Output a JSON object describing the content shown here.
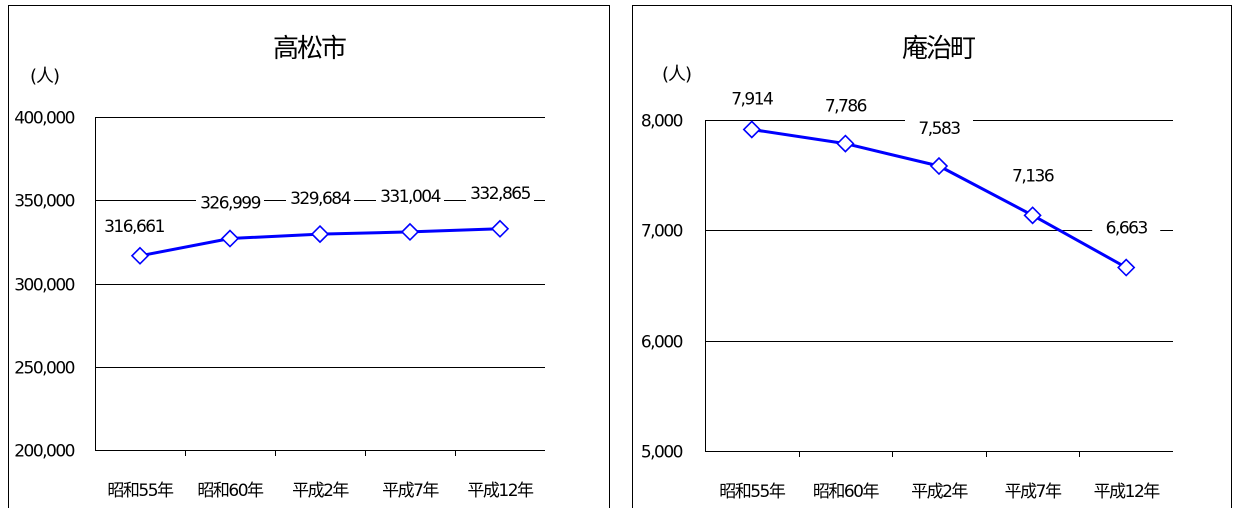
{
  "chart_data": [
    {
      "type": "line",
      "title": "高松市",
      "ylabel": "(人)",
      "categories": [
        "昭和55年",
        "昭和60年",
        "平成2年",
        "平成7年",
        "平成12年"
      ],
      "values": [
        316661,
        326999,
        329684,
        331004,
        332865
      ],
      "value_labels": [
        "316,661",
        "326,999",
        "329,684",
        "331,004",
        "332,865"
      ],
      "ylim": [
        200000,
        400000
      ],
      "yticks": [
        200000,
        250000,
        300000,
        350000,
        400000
      ],
      "ytick_labels": [
        "200,000",
        "250,000",
        "300,000",
        "350,000",
        "400,000"
      ],
      "grid": true,
      "legend": "none",
      "line_color": "#0000ff",
      "marker": "diamond"
    },
    {
      "type": "line",
      "title": "庵治町",
      "ylabel": "(人)",
      "categories": [
        "昭和55年",
        "昭和60年",
        "平成2年",
        "平成7年",
        "平成12年"
      ],
      "values": [
        7914,
        7786,
        7583,
        7136,
        6663
      ],
      "value_labels": [
        "7,914",
        "7,786",
        "7,583",
        "7,136",
        "6,663"
      ],
      "ylim": [
        5000,
        8000
      ],
      "yticks": [
        5000,
        6000,
        7000,
        8000
      ],
      "ytick_labels": [
        "5,000",
        "6,000",
        "7,000",
        "8,000"
      ],
      "grid": true,
      "legend": "none",
      "line_color": "#0000ff",
      "marker": "diamond"
    }
  ]
}
